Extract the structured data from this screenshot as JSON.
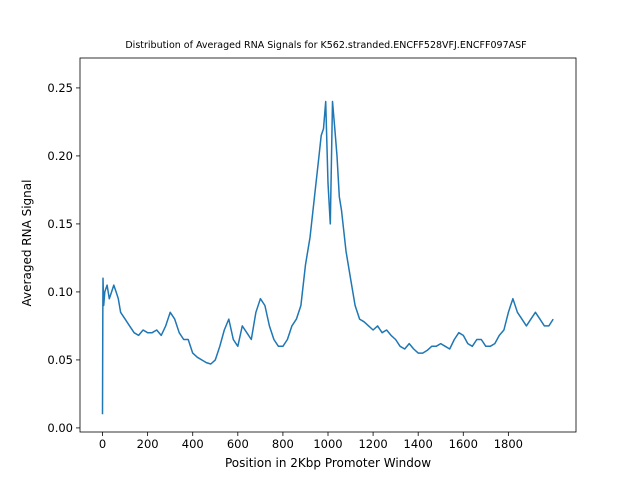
{
  "chart_data": {
    "type": "line",
    "title": "Distribution of Averaged RNA Signals for K562.stranded.ENCFF528VFJ.ENCFF097ASF",
    "xlabel": "Position in 2Kbp Promoter Window",
    "ylabel": "Averaged RNA Signal",
    "xlim": [
      -100,
      2100
    ],
    "ylim": [
      -0.003,
      0.272
    ],
    "xticks": [
      0,
      200,
      400,
      600,
      800,
      1000,
      1200,
      1400,
      1600,
      1800
    ],
    "yticks": [
      0.0,
      0.05,
      0.1,
      0.15,
      0.2,
      0.25
    ],
    "xtick_labels": [
      "0",
      "200",
      "400",
      "600",
      "800",
      "1000",
      "1200",
      "1400",
      "1600",
      "1800"
    ],
    "ytick_labels": [
      "0.00",
      "0.05",
      "0.10",
      "0.15",
      "0.20",
      "0.25"
    ],
    "grid": false,
    "color": "#1f77b4",
    "series": [
      {
        "x": [
          0,
          1,
          2,
          5,
          10,
          20,
          30,
          40,
          50,
          60,
          70,
          80,
          100,
          120,
          140,
          160,
          180,
          200,
          220,
          240,
          260,
          280,
          300,
          320,
          340,
          360,
          380,
          400,
          420,
          440,
          460,
          480,
          500,
          520,
          540,
          560,
          580,
          600,
          620,
          640,
          660,
          680,
          700,
          720,
          740,
          760,
          780,
          800,
          820,
          840,
          860,
          880,
          900,
          920,
          940,
          960,
          970,
          980,
          990,
          1000,
          1010,
          1020,
          1030,
          1040,
          1050,
          1060,
          1080,
          1100,
          1120,
          1140,
          1160,
          1180,
          1200,
          1220,
          1240,
          1260,
          1280,
          1300,
          1320,
          1340,
          1360,
          1380,
          1400,
          1420,
          1440,
          1460,
          1480,
          1500,
          1520,
          1540,
          1560,
          1580,
          1600,
          1620,
          1640,
          1660,
          1680,
          1700,
          1720,
          1740,
          1760,
          1780,
          1800,
          1810,
          1820,
          1840,
          1860,
          1880,
          1900,
          1920,
          1940,
          1960,
          1980,
          1999
        ],
        "y": [
          0.01,
          0.08,
          0.11,
          0.09,
          0.1,
          0.105,
          0.095,
          0.1,
          0.105,
          0.1,
          0.095,
          0.085,
          0.08,
          0.075,
          0.07,
          0.068,
          0.072,
          0.07,
          0.07,
          0.072,
          0.068,
          0.075,
          0.085,
          0.08,
          0.07,
          0.065,
          0.065,
          0.055,
          0.052,
          0.05,
          0.048,
          0.047,
          0.05,
          0.06,
          0.072,
          0.08,
          0.065,
          0.06,
          0.075,
          0.07,
          0.065,
          0.085,
          0.095,
          0.09,
          0.075,
          0.065,
          0.06,
          0.06,
          0.065,
          0.075,
          0.08,
          0.09,
          0.12,
          0.14,
          0.17,
          0.2,
          0.215,
          0.22,
          0.24,
          0.18,
          0.15,
          0.24,
          0.22,
          0.2,
          0.17,
          0.16,
          0.13,
          0.11,
          0.09,
          0.08,
          0.078,
          0.075,
          0.072,
          0.075,
          0.07,
          0.072,
          0.068,
          0.065,
          0.06,
          0.058,
          0.062,
          0.058,
          0.055,
          0.055,
          0.057,
          0.06,
          0.06,
          0.062,
          0.06,
          0.058,
          0.065,
          0.07,
          0.068,
          0.062,
          0.06,
          0.065,
          0.065,
          0.06,
          0.06,
          0.062,
          0.068,
          0.072,
          0.085,
          0.09,
          0.095,
          0.085,
          0.08,
          0.075,
          0.08,
          0.085,
          0.08,
          0.075,
          0.075,
          0.08
        ]
      }
    ]
  }
}
